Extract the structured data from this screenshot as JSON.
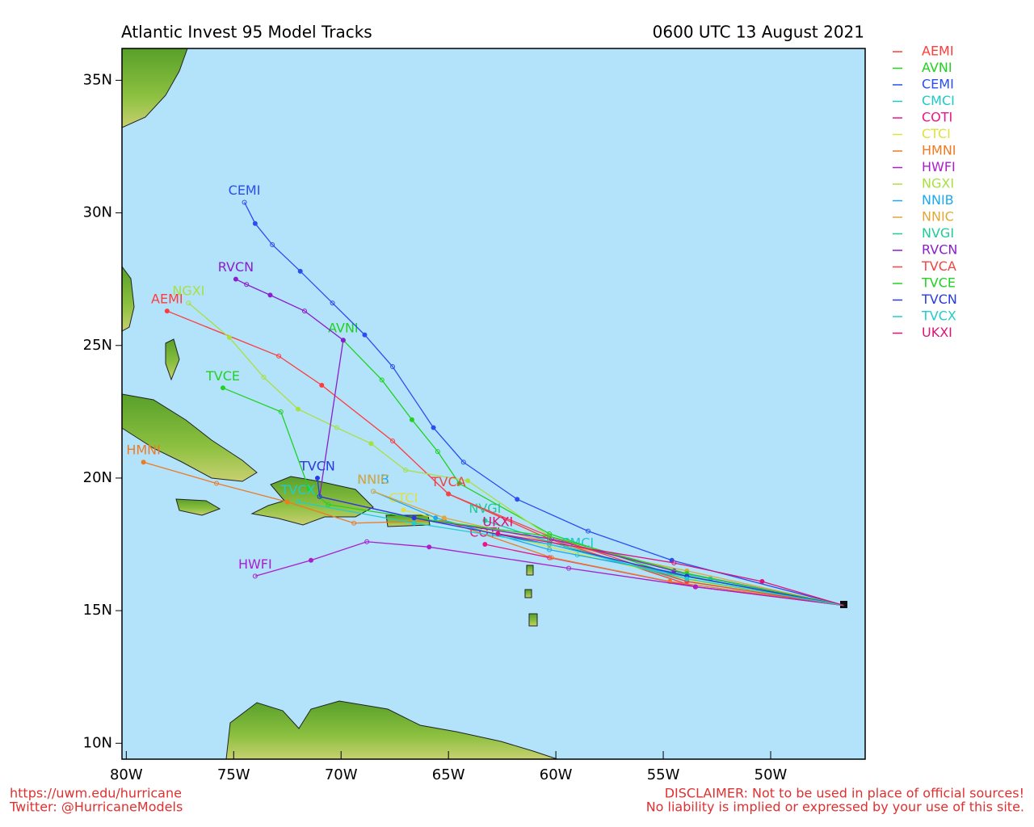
{
  "chart_data": {
    "type": "track_map",
    "title": "Atlantic Invest 95 Model Tracks",
    "subtitle": "0600 UTC 13 August 2021",
    "footer_left": [
      "https://uwm.edu/hurricane",
      "Twitter: @HurricaneModels"
    ],
    "footer_right": [
      "DISCLAIMER: Not to be used in place of official sources!",
      "No liability is implied or expressed by your use of this site."
    ],
    "xlim": [
      -80.2,
      -45.6
    ],
    "ylim": [
      9.4,
      36.2
    ],
    "xticks": [
      {
        "value": -80,
        "label": "80W"
      },
      {
        "value": -75,
        "label": "75W"
      },
      {
        "value": -70,
        "label": "70W"
      },
      {
        "value": -65,
        "label": "65W"
      },
      {
        "value": -60,
        "label": "60W"
      },
      {
        "value": -55,
        "label": "55W"
      },
      {
        "value": -50,
        "label": "50W"
      }
    ],
    "yticks": [
      {
        "value": 10,
        "label": "10N"
      },
      {
        "value": 15,
        "label": "15N"
      },
      {
        "value": 20,
        "label": "20N"
      },
      {
        "value": 25,
        "label": "25N"
      },
      {
        "value": 30,
        "label": "30N"
      },
      {
        "value": 35,
        "label": "35N"
      }
    ],
    "series": [
      {
        "name": "AEMI",
        "color": "#ff3b3b",
        "x": [
          -46.6,
          -53.5,
          -60.3,
          -65.0,
          -67.6,
          -70.9,
          -72.9,
          -78.1
        ],
        "values": [
          15.2,
          15.9,
          17.7,
          19.4,
          21.4,
          23.5,
          24.6,
          26.3
        ]
      },
      {
        "name": "AVNI",
        "color": "#1ed21e",
        "x": [
          -46.6,
          -54.7,
          -60.3,
          -64.5,
          -65.5,
          -66.7,
          -68.1,
          -69.9
        ],
        "values": [
          15.2,
          16.4,
          17.9,
          19.8,
          21.0,
          22.2,
          23.7,
          25.2
        ]
      },
      {
        "name": "CEMI",
        "color": "#2a4ef0",
        "x": [
          -46.6,
          -54.6,
          -58.5,
          -61.8,
          -64.3,
          -65.7,
          -67.6,
          -68.9,
          -70.4,
          -71.9,
          -73.2,
          -74.0,
          -74.5
        ],
        "values": [
          15.2,
          16.9,
          18.0,
          19.2,
          20.6,
          21.9,
          24.2,
          25.4,
          26.6,
          27.8,
          28.8,
          29.6,
          30.4
        ]
      },
      {
        "name": "CMCI",
        "color": "#1ec8c8",
        "x": [
          -46.6,
          -52.8,
          -59.0
        ],
        "values": [
          15.2,
          16.2,
          17.1
        ]
      },
      {
        "name": "COTI",
        "color": "#ee1488",
        "x": [
          -46.6,
          -53.5,
          -60.3,
          -63.3
        ],
        "values": [
          15.2,
          15.9,
          17.0,
          17.5
        ]
      },
      {
        "name": "CTCI",
        "color": "#e0e040",
        "x": [
          -46.6,
          -53.5,
          -60.3,
          -67.1
        ],
        "values": [
          15.2,
          16.1,
          17.4,
          18.8
        ]
      },
      {
        "name": "HMNI",
        "color": "#ee7a22",
        "x": [
          -46.6,
          -54.7,
          -60.2,
          -65.2,
          -69.4,
          -72.5,
          -75.8,
          -79.2
        ],
        "values": [
          15.2,
          16.1,
          17.0,
          18.4,
          18.3,
          19.1,
          19.8,
          20.6
        ]
      },
      {
        "name": "HWFI",
        "color": "#aa1ecc",
        "x": [
          -46.6,
          -53.5,
          -59.4,
          -65.9,
          -68.8,
          -71.4,
          -74.0
        ],
        "values": [
          15.2,
          15.9,
          16.6,
          17.4,
          17.6,
          16.9,
          16.3
        ]
      },
      {
        "name": "NGXI",
        "color": "#a8e040",
        "x": [
          -46.6,
          -54.5,
          -60.3,
          -64.1,
          -67.0,
          -68.6,
          -70.2,
          -72.0,
          -73.6,
          -75.2,
          -77.1
        ],
        "values": [
          15.2,
          16.5,
          17.8,
          19.9,
          20.3,
          21.3,
          21.9,
          22.6,
          23.8,
          25.3,
          26.6
        ]
      },
      {
        "name": "NNIB",
        "color": "#1ea8ee",
        "x": [
          -46.6,
          -53.9,
          -60.3,
          -65.6,
          -68.5
        ],
        "values": [
          15.2,
          16.3,
          17.3,
          18.5,
          19.5
        ]
      },
      {
        "name": "NNIC",
        "color": "#e0a838",
        "x": [
          -46.6,
          -53.9,
          -60.3,
          -65.2,
          -68.5
        ],
        "values": [
          15.2,
          16.5,
          17.6,
          18.5,
          19.5
        ]
      },
      {
        "name": "NVGI",
        "color": "#1ecc96",
        "x": [
          -46.6,
          -53.9,
          -60.3,
          -63.3
        ],
        "values": [
          15.2,
          16.1,
          17.6,
          18.4
        ]
      },
      {
        "name": "RVCN",
        "color": "#8a1ecc",
        "x": [
          -46.6,
          -54.5,
          -60.2,
          -66.6,
          -71.0,
          -69.9,
          -71.7,
          -73.3,
          -74.4,
          -74.9
        ],
        "values": [
          15.2,
          16.5,
          17.7,
          18.5,
          19.3,
          25.2,
          26.3,
          26.9,
          27.3,
          27.5
        ]
      },
      {
        "name": "TVCA",
        "color": "#ee4646",
        "x": [
          -46.6,
          -53.9,
          -60.3,
          -65.0
        ],
        "values": [
          15.2,
          16.1,
          17.8,
          19.4
        ]
      },
      {
        "name": "TVCE",
        "color": "#22d222",
        "x": [
          -46.6,
          -53.9,
          -60.3,
          -66.6,
          -70.6,
          -71.5,
          -72.8,
          -75.5
        ],
        "values": [
          15.2,
          16.4,
          17.8,
          18.5,
          19.0,
          19.6,
          22.5,
          23.4
        ]
      },
      {
        "name": "TVCN",
        "color": "#2a3adc",
        "x": [
          -46.6,
          -53.9,
          -60.3,
          -66.6,
          -71.0,
          -71.1
        ],
        "values": [
          15.2,
          16.3,
          17.5,
          18.5,
          19.3,
          20.0
        ]
      },
      {
        "name": "TVCX",
        "color": "#22cccc",
        "x": [
          -46.6,
          -53.9,
          -60.3,
          -66.6,
          -72.0
        ],
        "values": [
          15.2,
          16.2,
          17.5,
          18.3,
          19.1
        ]
      },
      {
        "name": "UKXI",
        "color": "#dc1478",
        "x": [
          -46.6,
          -50.4,
          -54.5,
          -62.7
        ],
        "values": [
          15.2,
          16.1,
          16.8,
          17.9
        ]
      }
    ]
  }
}
